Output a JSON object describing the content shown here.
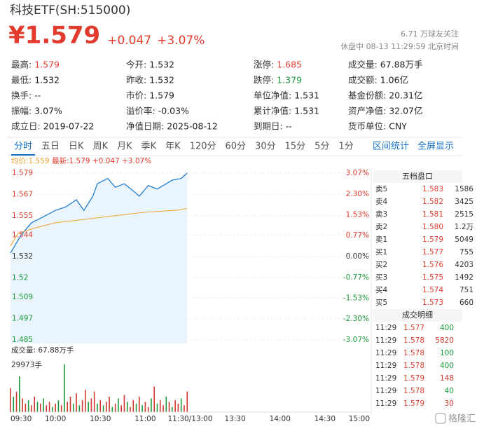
{
  "header": {
    "title": "科技ETF(SH:515000)",
    "price": "¥1.579",
    "change": "+0.047",
    "change_pct": "+3.07%",
    "followers": "6.71 万球友关注",
    "status": "休盘中 08-13 11:29:59 北京时间"
  },
  "stats": [
    [
      {
        "label": "最高:",
        "value": "1.579",
        "color": "#e23b2e"
      },
      {
        "label": "今开:",
        "value": "1.532"
      },
      {
        "label": "涨停:",
        "value": "1.685",
        "color": "#e23b2e"
      },
      {
        "label": "成交量:",
        "value": "67.88万手"
      }
    ],
    [
      {
        "label": "最低:",
        "value": "1.532"
      },
      {
        "label": "昨收:",
        "value": "1.532"
      },
      {
        "label": "跌停:",
        "value": "1.379",
        "color": "#1a9a3a"
      },
      {
        "label": "成交额:",
        "value": "1.06亿"
      }
    ],
    [
      {
        "label": "换手:",
        "value": "--"
      },
      {
        "label": "市价:",
        "value": "1.579"
      },
      {
        "label": "单位净值:",
        "value": "1.531"
      },
      {
        "label": "基金份额:",
        "value": "20.31亿"
      }
    ],
    [
      {
        "label": "振幅:",
        "value": "3.07%"
      },
      {
        "label": "溢价率:",
        "value": "-0.03%"
      },
      {
        "label": "累计净值:",
        "value": "1.531"
      },
      {
        "label": "资产净值:",
        "value": "32.07亿"
      }
    ],
    [
      {
        "label": "成立日:",
        "value": "2019-07-22"
      },
      {
        "label": "净值日期:",
        "value": "2025-08-12"
      },
      {
        "label": "到期日:",
        "value": "--"
      },
      {
        "label": "货币单位:",
        "value": "CNY"
      }
    ]
  ],
  "tabs": [
    "分时",
    "五日",
    "日K",
    "周K",
    "月K",
    "季K",
    "年K",
    "120分",
    "60分",
    "30分",
    "15分",
    "5分",
    "1分"
  ],
  "active_tab": 0,
  "links": [
    "区间统计",
    "全屏显示"
  ],
  "chart_data": {
    "type": "line",
    "avg_label": "均价:1.559",
    "latest_label": "最新:1.579 +0.047 +3.07%",
    "xlim": [
      0,
      240
    ],
    "xticks": [
      {
        "value": 0,
        "label": "09:30"
      },
      {
        "value": 30,
        "label": "10:00"
      },
      {
        "value": 60,
        "label": "10:30"
      },
      {
        "value": 90,
        "label": "11:00"
      },
      {
        "value": 120,
        "label": "11:30/13:00"
      },
      {
        "value": 150,
        "label": "13:30"
      },
      {
        "value": 180,
        "label": "14:00"
      },
      {
        "value": 210,
        "label": "14:30"
      },
      {
        "value": 240,
        "label": "15:00"
      }
    ],
    "ylim": [
      1.485,
      1.579
    ],
    "yticks": [
      1.579,
      1.567,
      1.555,
      1.544,
      1.532,
      1.52,
      1.509,
      1.497,
      1.485
    ],
    "y2lim": [
      -3.07,
      3.07
    ],
    "y2ticks": [
      {
        "value": 3.07,
        "label": "3.07%"
      },
      {
        "value": 2.3,
        "label": "2.30%"
      },
      {
        "value": 1.53,
        "label": "1.53%"
      },
      {
        "value": 0.77,
        "label": "0.77%"
      },
      {
        "value": 0,
        "label": "0.00%"
      },
      {
        "value": -0.77,
        "label": "-0.77%"
      },
      {
        "value": -1.53,
        "label": "-1.53%"
      },
      {
        "value": -2.3,
        "label": "-2.30%"
      },
      {
        "value": -3.07,
        "label": "-3.07%"
      }
    ],
    "grid": true,
    "series": [
      {
        "color": "#1f7fd0",
        "x": [
          0,
          7,
          14,
          21,
          30,
          37,
          44,
          49,
          55,
          58,
          65,
          70,
          76,
          82,
          86,
          92,
          98,
          102,
          108,
          114,
          118
        ],
        "values": [
          1.534,
          1.544,
          1.551,
          1.554,
          1.558,
          1.56,
          1.564,
          1.558,
          1.566,
          1.573,
          1.576,
          1.571,
          1.573,
          1.569,
          1.566,
          1.572,
          1.57,
          1.572,
          1.575,
          1.576,
          1.579
        ]
      },
      {
        "color": "#f0a030",
        "x": [
          0,
          5,
          16,
          30,
          50,
          70,
          90,
          110,
          118
        ],
        "values": [
          1.538,
          1.545,
          1.548,
          1.551,
          1.553,
          1.555,
          1.557,
          1.558,
          1.559
        ]
      }
    ],
    "volume": {
      "label": "成交量: 67.88万手",
      "ylim": [
        0,
        29973
      ],
      "yticks": [
        {
          "value": 29973,
          "label": "29973手"
        }
      ],
      "x": [
        0,
        2,
        4,
        6,
        8,
        10,
        12,
        14,
        16,
        18,
        20,
        22,
        24,
        26,
        28,
        30,
        32,
        34,
        36,
        38,
        40,
        42,
        44,
        46,
        48,
        50,
        52,
        54,
        56,
        58,
        60,
        62,
        64,
        66,
        68,
        70,
        72,
        74,
        76,
        78,
        80,
        82,
        84,
        86,
        88,
        90,
        92,
        94,
        96,
        98,
        100,
        102,
        104,
        106,
        108,
        110,
        112,
        114,
        116,
        118
      ],
      "values": [
        14000,
        9000,
        12000,
        21000,
        8000,
        5000,
        7000,
        4000,
        9000,
        6000,
        5000,
        8000,
        4000,
        6000,
        3000,
        5000,
        7000,
        4000,
        28000,
        6000,
        9000,
        5000,
        11000,
        4000,
        7000,
        13000,
        6000,
        8000,
        12000,
        5000,
        7000,
        4000,
        6000,
        9000,
        3000,
        5000,
        8000,
        4000,
        10000,
        6000,
        3000,
        7000,
        5000,
        9000,
        4000,
        6000,
        3000,
        8000,
        15000,
        5000,
        7000,
        4000,
        9000,
        6000,
        3000,
        7000,
        5000,
        8000,
        4000,
        12000
      ],
      "colors": [
        "#d2372f",
        "#1a9a3a",
        "#d2372f",
        "#1a9a3a",
        "#d2372f",
        "#d2372f",
        "#1a9a3a",
        "#d2372f",
        "#d2372f",
        "#1a9a3a",
        "#d2372f",
        "#1a9a3a",
        "#d2372f",
        "#d2372f",
        "#1a9a3a",
        "#d2372f",
        "#1a9a3a",
        "#d2372f",
        "#1a9a3a",
        "#d2372f",
        "#d2372f",
        "#1a9a3a",
        "#d2372f",
        "#1a9a3a",
        "#d2372f",
        "#d2372f",
        "#1a9a3a",
        "#d2372f",
        "#d2372f",
        "#1a9a3a",
        "#d2372f",
        "#1a9a3a",
        "#d2372f",
        "#d2372f",
        "#1a9a3a",
        "#d2372f",
        "#1a9a3a",
        "#d2372f",
        "#d2372f",
        "#1a9a3a",
        "#d2372f",
        "#d2372f",
        "#1a9a3a",
        "#d2372f",
        "#1a9a3a",
        "#d2372f",
        "#d2372f",
        "#1a9a3a",
        "#d2372f",
        "#1a9a3a",
        "#d2372f",
        "#d2372f",
        "#1a9a3a",
        "#d2372f",
        "#1a9a3a",
        "#d2372f",
        "#d2372f",
        "#1a9a3a",
        "#d2372f",
        "#d2372f"
      ]
    }
  },
  "order_book": {
    "title": "五档盘口",
    "rows": [
      [
        "卖5",
        "1.583",
        "1586"
      ],
      [
        "卖4",
        "1.582",
        "3425"
      ],
      [
        "卖3",
        "1.581",
        "2515"
      ],
      [
        "卖2",
        "1.580",
        "1.2万"
      ],
      [
        "卖1",
        "1.579",
        "5049"
      ],
      [
        "买1",
        "1.577",
        "755"
      ],
      [
        "买2",
        "1.576",
        "4203"
      ],
      [
        "买3",
        "1.575",
        "1492"
      ],
      [
        "买4",
        "1.574",
        "751"
      ],
      [
        "买5",
        "1.573",
        "660"
      ]
    ]
  },
  "trades": {
    "title": "成交明细",
    "rows": [
      [
        "11:29",
        "1.577",
        "400"
      ],
      [
        "11:29",
        "1.578",
        "5820"
      ],
      [
        "11:29",
        "1.578",
        "100"
      ],
      [
        "11:29",
        "1.578",
        "400"
      ],
      [
        "11:29",
        "1.579",
        "148"
      ],
      [
        "11:29",
        "1.578",
        "40"
      ],
      [
        "11:29",
        "1.579",
        "30"
      ]
    ],
    "colors": [
      "#1a9a3a",
      "#d2372f",
      "#1a9a3a",
      "#1a9a3a",
      "#d2372f",
      "#1a9a3a",
      "#d2372f"
    ]
  },
  "watermark": "格隆汇"
}
